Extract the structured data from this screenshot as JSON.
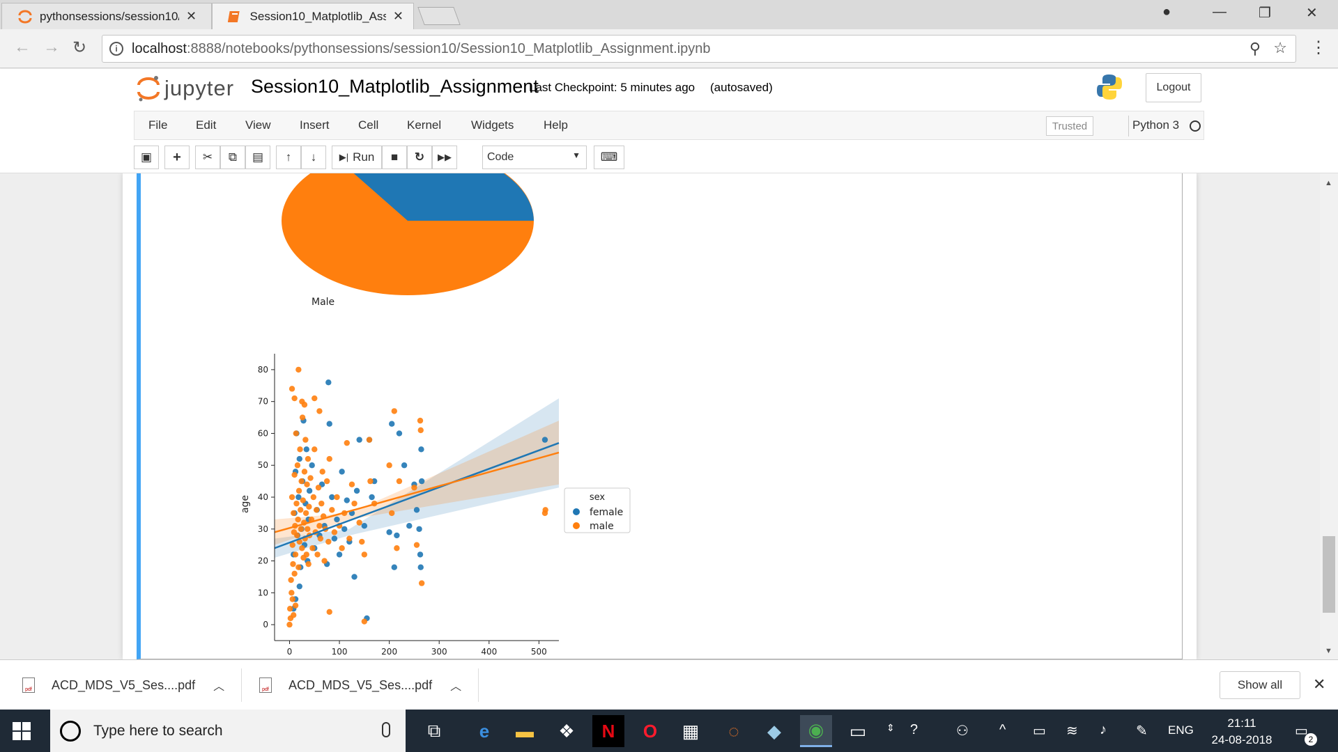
{
  "browser": {
    "tabs": [
      {
        "title": "pythonsessions/session10/",
        "active": false
      },
      {
        "title": "Session10_Matplotlib_Assignment",
        "active": true
      }
    ],
    "url_host": "localhost",
    "url_path": ":8888/notebooks/pythonsessions/session10/Session10_Matplotlib_Assignment.ipynb"
  },
  "jupyter": {
    "logo_text": "jupyter",
    "notebook_name": "Session10_Matplotlib_Assignment",
    "checkpoint": "Last Checkpoint: 5 minutes ago",
    "autosave": "(autosaved)",
    "logout_label": "Logout",
    "menu": [
      "File",
      "Edit",
      "View",
      "Insert",
      "Cell",
      "Kernel",
      "Widgets",
      "Help"
    ],
    "trusted_label": "Trusted",
    "kernel_name": "Python 3",
    "run_label": "Run",
    "cell_type": "Code"
  },
  "chart_data": [
    {
      "type": "pie",
      "labels": [
        "Male"
      ],
      "colors": {
        "female": "#1f77b4",
        "male": "#ff7f0e"
      }
    },
    {
      "type": "scatter",
      "xlabel": "",
      "ylabel": "age",
      "xlim": [
        -30,
        540
      ],
      "ylim": [
        -5,
        85
      ],
      "xticks": [
        "0",
        "100",
        "200",
        "300",
        "400",
        "500"
      ],
      "yticks": [
        "0",
        "10",
        "20",
        "30",
        "40",
        "50",
        "60",
        "70",
        "80"
      ],
      "legend": {
        "title": "sex",
        "position": "right",
        "entries": [
          "female",
          "male"
        ]
      },
      "series": [
        {
          "name": "female",
          "color": "#1f77b4",
          "regression": {
            "x": [
              -30,
              540
            ],
            "y": [
              24,
              57
            ]
          },
          "points": [
            [
              8,
              22
            ],
            [
              10,
              35
            ],
            [
              12,
              48
            ],
            [
              14,
              60
            ],
            [
              16,
              28
            ],
            [
              18,
              40
            ],
            [
              20,
              52
            ],
            [
              22,
              18
            ],
            [
              24,
              30
            ],
            [
              26,
              45
            ],
            [
              28,
              64
            ],
            [
              30,
              25
            ],
            [
              32,
              38
            ],
            [
              34,
              55
            ],
            [
              36,
              20
            ],
            [
              38,
              33
            ],
            [
              40,
              42
            ],
            [
              45,
              50
            ],
            [
              50,
              24
            ],
            [
              55,
              36
            ],
            [
              60,
              28
            ],
            [
              65,
              44
            ],
            [
              70,
              31
            ],
            [
              75,
              19
            ],
            [
              80,
              63
            ],
            [
              78,
              76
            ],
            [
              85,
              40
            ],
            [
              90,
              27
            ],
            [
              95,
              33
            ],
            [
              100,
              22
            ],
            [
              105,
              48
            ],
            [
              110,
              30
            ],
            [
              115,
              39
            ],
            [
              120,
              26
            ],
            [
              125,
              35
            ],
            [
              130,
              15
            ],
            [
              135,
              42
            ],
            [
              140,
              58
            ],
            [
              150,
              31
            ],
            [
              155,
              2
            ],
            [
              160,
              58
            ],
            [
              165,
              40
            ],
            [
              170,
              45
            ],
            [
              200,
              29
            ],
            [
              205,
              63
            ],
            [
              210,
              18
            ],
            [
              215,
              28
            ],
            [
              220,
              60
            ],
            [
              230,
              50
            ],
            [
              240,
              31
            ],
            [
              250,
              44
            ],
            [
              255,
              36
            ],
            [
              260,
              30
            ],
            [
              262,
              22
            ],
            [
              263,
              18
            ],
            [
              264,
              55
            ],
            [
              265,
              45
            ],
            [
              512,
              58
            ],
            [
              8,
              5
            ],
            [
              12,
              8
            ],
            [
              20,
              12
            ]
          ]
        },
        {
          "name": "male",
          "color": "#ff7f0e",
          "regression": {
            "x": [
              -30,
              540
            ],
            "y": [
              29,
              54
            ]
          },
          "points": [
            [
              5,
              40
            ],
            [
              6,
              25
            ],
            [
              7,
              19
            ],
            [
              8,
              35
            ],
            [
              9,
              29
            ],
            [
              10,
              47
            ],
            [
              11,
              31
            ],
            [
              12,
              22
            ],
            [
              13,
              60
            ],
            [
              14,
              38
            ],
            [
              15,
              28
            ],
            [
              16,
              50
            ],
            [
              17,
              33
            ],
            [
              18,
              18
            ],
            [
              19,
              42
            ],
            [
              20,
              26
            ],
            [
              21,
              55
            ],
            [
              22,
              36
            ],
            [
              23,
              30
            ],
            [
              24,
              45
            ],
            [
              25,
              24
            ],
            [
              26,
              65
            ],
            [
              27,
              39
            ],
            [
              28,
              21
            ],
            [
              29,
              32
            ],
            [
              30,
              48
            ],
            [
              31,
              27
            ],
            [
              32,
              58
            ],
            [
              33,
              35
            ],
            [
              34,
              22
            ],
            [
              35,
              44
            ],
            [
              36,
              30
            ],
            [
              37,
              52
            ],
            [
              38,
              19
            ],
            [
              39,
              37
            ],
            [
              40,
              28
            ],
            [
              42,
              46
            ],
            [
              44,
              33
            ],
            [
              46,
              24
            ],
            [
              48,
              40
            ],
            [
              50,
              55
            ],
            [
              52,
              29
            ],
            [
              54,
              36
            ],
            [
              56,
              22
            ],
            [
              58,
              43
            ],
            [
              60,
              31
            ],
            [
              62,
              27
            ],
            [
              64,
              38
            ],
            [
              66,
              48
            ],
            [
              68,
              34
            ],
            [
              70,
              20
            ],
            [
              72,
              30
            ],
            [
              75,
              45
            ],
            [
              78,
              26
            ],
            [
              80,
              52
            ],
            [
              85,
              36
            ],
            [
              90,
              29
            ],
            [
              95,
              40
            ],
            [
              100,
              31
            ],
            [
              105,
              24
            ],
            [
              110,
              35
            ],
            [
              115,
              57
            ],
            [
              120,
              27
            ],
            [
              125,
              44
            ],
            [
              130,
              38
            ],
            [
              140,
              32
            ],
            [
              145,
              26
            ],
            [
              150,
              22
            ],
            [
              160,
              58
            ],
            [
              162,
              45
            ],
            [
              170,
              38
            ],
            [
              200,
              50
            ],
            [
              205,
              35
            ],
            [
              210,
              67
            ],
            [
              215,
              24
            ],
            [
              220,
              45
            ],
            [
              250,
              43
            ],
            [
              255,
              25
            ],
            [
              262,
              64
            ],
            [
              263,
              61
            ],
            [
              265,
              13
            ],
            [
              512,
              35
            ],
            [
              513,
              36
            ],
            [
              18,
              80
            ],
            [
              5,
              74
            ],
            [
              10,
              71
            ],
            [
              25,
              70
            ],
            [
              30,
              69
            ],
            [
              50,
              71
            ],
            [
              60,
              67
            ],
            [
              0,
              0
            ],
            [
              2,
              2
            ],
            [
              1,
              5
            ],
            [
              4,
              10
            ],
            [
              3,
              14
            ],
            [
              6,
              8
            ],
            [
              8,
              3
            ],
            [
              10,
              16
            ],
            [
              12,
              6
            ],
            [
              80,
              4
            ],
            [
              150,
              1
            ]
          ]
        }
      ]
    }
  ],
  "downloads": [
    {
      "name": "ACD_MDS_V5_Ses....pdf"
    },
    {
      "name": "ACD_MDS_V5_Ses....pdf"
    }
  ],
  "downloads_show_all": "Show all",
  "taskbar": {
    "search_placeholder": "Type here to search",
    "language": "ENG",
    "time": "21:11",
    "date": "24-08-2018",
    "notification_count": "2"
  }
}
